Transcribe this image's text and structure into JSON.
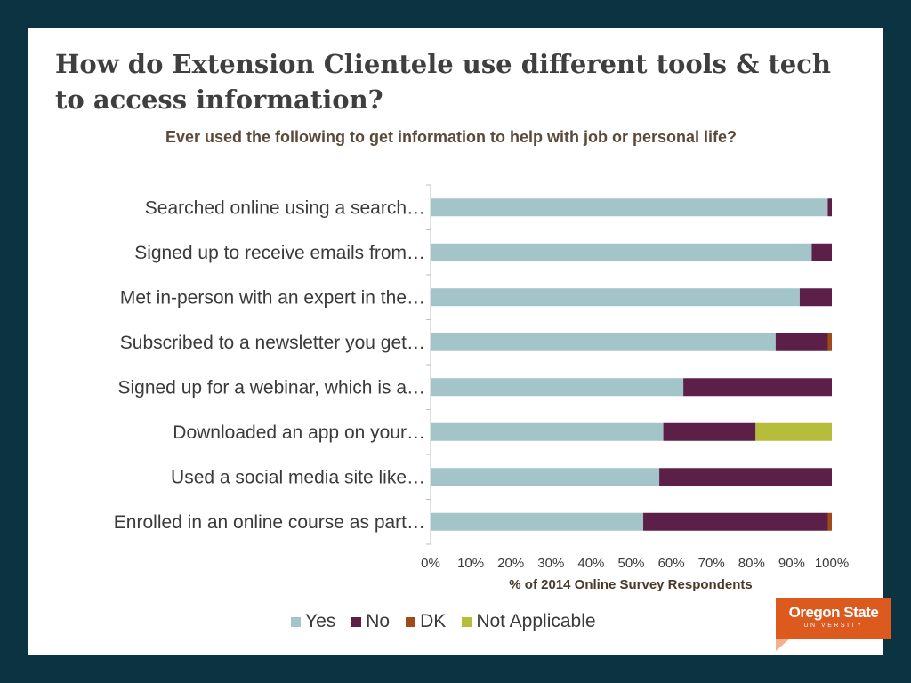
{
  "slide": {
    "title": "How do Extension Clientele use different tools & tech to access information?"
  },
  "logo": {
    "main": "Oregon State",
    "sub": "UNIVERSITY",
    "color": "#dc5a1e"
  },
  "chart_data": {
    "type": "bar",
    "orientation": "horizontal",
    "stacked": true,
    "title": "Ever used the following to get information to help with job or personal life?",
    "xlabel": "% of 2014 Online Survey Respondents",
    "ylabel": "",
    "xlim": [
      0,
      100
    ],
    "xticks": [
      "0%",
      "10%",
      "20%",
      "30%",
      "40%",
      "50%",
      "60%",
      "70%",
      "80%",
      "90%",
      "100%"
    ],
    "categories": [
      "Searched online using a search…",
      "Signed up to receive emails from…",
      "Met in-person with an expert in the…",
      "Subscribed to a newsletter you get…",
      "Signed up for a webinar, which is a…",
      "Downloaded an app on your…",
      "Used a social media site like…",
      "Enrolled in an online course as part…"
    ],
    "series": [
      {
        "name": "Yes",
        "color": "#a3c4c9",
        "values": [
          99,
          95,
          92,
          86,
          63,
          58,
          57,
          53
        ]
      },
      {
        "name": "No",
        "color": "#5c2048",
        "values": [
          1,
          5,
          8,
          13,
          37,
          23,
          43,
          46
        ]
      },
      {
        "name": "DK",
        "color": "#a04a1a",
        "values": [
          0,
          0,
          0,
          1,
          0,
          0,
          0,
          1
        ]
      },
      {
        "name": "Not Applicable",
        "color": "#b5bd3a",
        "values": [
          0,
          0,
          0,
          0,
          0,
          19,
          0,
          0
        ]
      }
    ],
    "legend_position": "bottom",
    "grid": false
  }
}
